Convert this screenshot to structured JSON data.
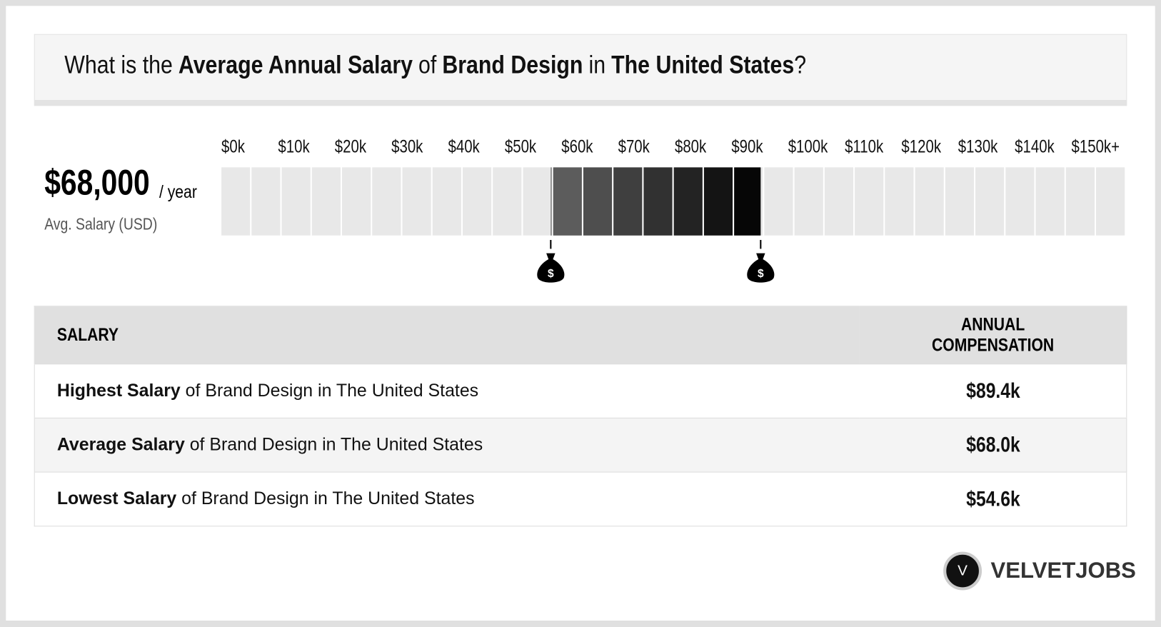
{
  "header": {
    "title": [
      {
        "text": "What is the",
        "bold": false
      },
      {
        "text": "Average Annual Salary",
        "bold": true
      },
      {
        "text": "of",
        "bold": false
      },
      {
        "text": "Brand Design",
        "bold": true
      },
      {
        "text": "in",
        "bold": false
      },
      {
        "text": "The United States",
        "bold": true
      },
      {
        "text": "?",
        "bold": false
      }
    ]
  },
  "summary": {
    "amount": "$68,000",
    "unit": "/ year",
    "label": "Avg. Salary (USD)"
  },
  "scale": {
    "ticks": [
      {
        "value": 0,
        "label": "$0k"
      },
      {
        "value": 10,
        "label": "$10k"
      },
      {
        "value": 20,
        "label": "$20k"
      },
      {
        "value": 30,
        "label": "$30k"
      },
      {
        "value": 40,
        "label": "$40k"
      },
      {
        "value": 50,
        "label": "$50k"
      },
      {
        "value": 60,
        "label": "$60k"
      },
      {
        "value": 70,
        "label": "$70k"
      },
      {
        "value": 80,
        "label": "$80k"
      },
      {
        "value": 90,
        "label": "$90k"
      },
      {
        "value": 100,
        "label": "$100k"
      },
      {
        "value": 110,
        "label": "$110k"
      },
      {
        "value": 120,
        "label": "$120k"
      },
      {
        "value": 130,
        "label": "$130k"
      },
      {
        "value": 140,
        "label": "$140k"
      },
      {
        "value": 150,
        "label": "$150k+"
      }
    ],
    "low": 54.6,
    "high": 89.4
  },
  "table": {
    "columns": [
      "SALARY",
      "ANNUAL COMPENSATION"
    ],
    "rows": [
      [
        "Highest Salary",
        "of Brand Design in The United States",
        "$89.4k"
      ],
      [
        "Average Salary",
        "of Brand Design in The United States",
        "$68.0k"
      ],
      [
        "Lowest Salary",
        "of Brand Design in The United States",
        "$54.6k"
      ]
    ]
  },
  "brand": {
    "logo": "V",
    "name": "VELVETJOBS"
  }
}
